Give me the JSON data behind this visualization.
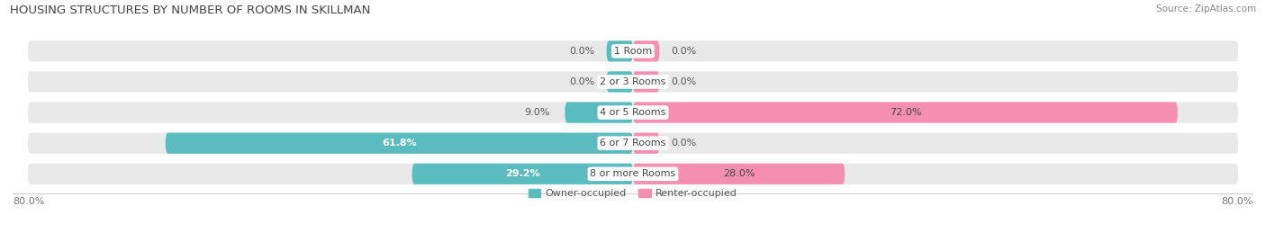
{
  "title": "HOUSING STRUCTURES BY NUMBER OF ROOMS IN SKILLMAN",
  "source": "Source: ZipAtlas.com",
  "categories": [
    "1 Room",
    "2 or 3 Rooms",
    "4 or 5 Rooms",
    "6 or 7 Rooms",
    "8 or more Rooms"
  ],
  "owner_values": [
    0.0,
    0.0,
    9.0,
    61.8,
    29.2
  ],
  "renter_values": [
    0.0,
    0.0,
    72.0,
    0.0,
    28.0
  ],
  "owner_color": "#5bbcbf",
  "renter_color": "#f48fb1",
  "bar_bg_color": "#e8e8e8",
  "axis_min": -80.0,
  "axis_max": 80.0,
  "left_label": "80.0%",
  "right_label": "80.0%",
  "legend_owner": "Owner-occupied",
  "legend_renter": "Renter-occupied",
  "title_fontsize": 9.5,
  "source_fontsize": 7.5,
  "label_fontsize": 8,
  "category_fontsize": 8,
  "value_fontsize": 8,
  "small_bar_stub": 3.5
}
